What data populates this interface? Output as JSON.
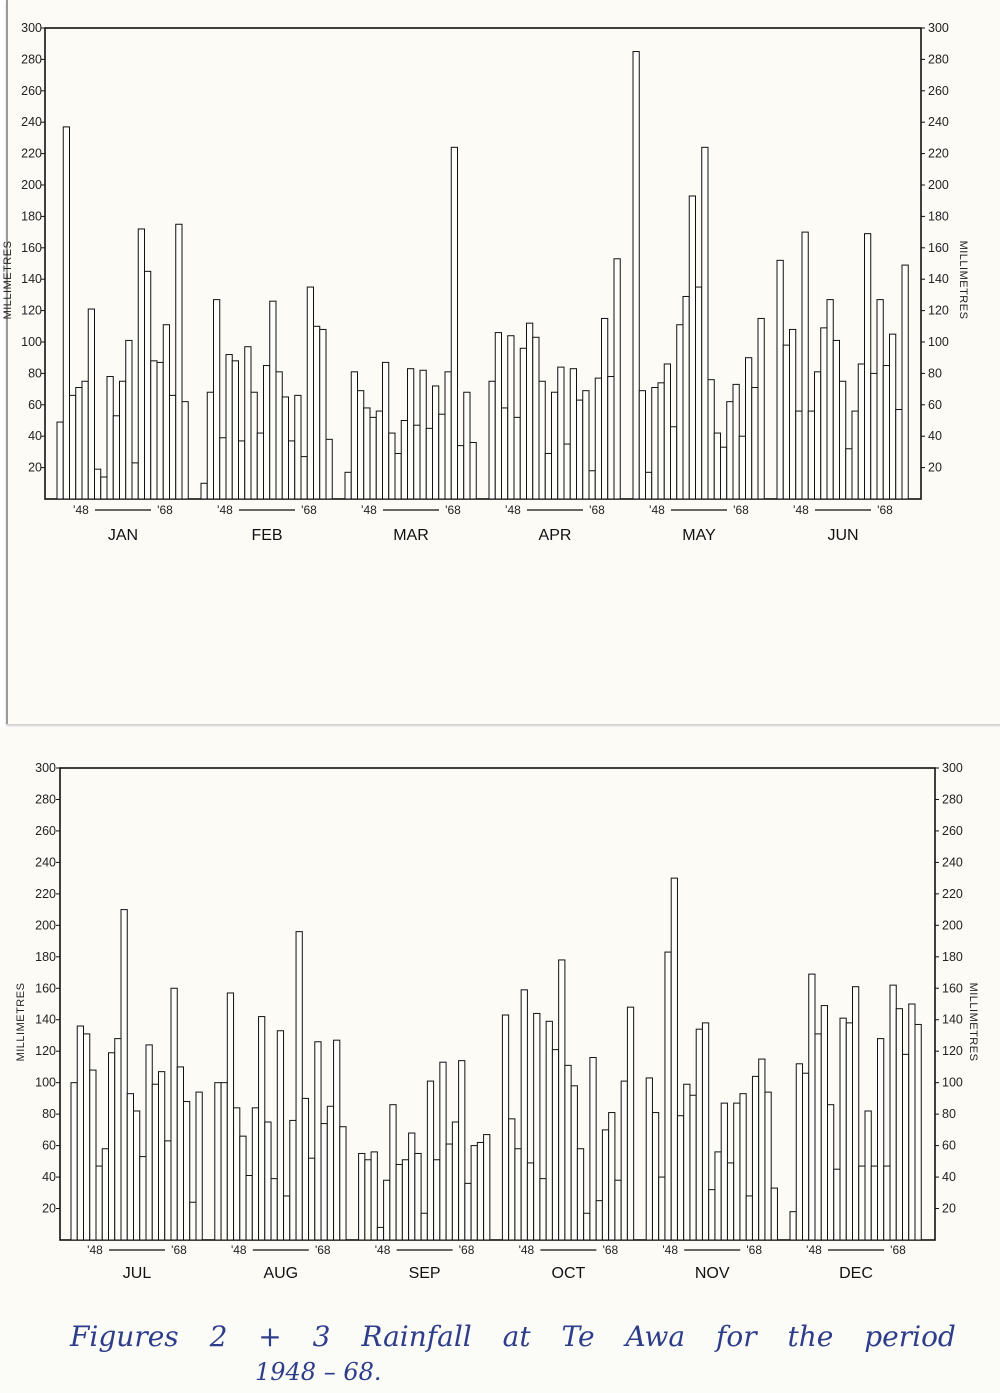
{
  "caption": {
    "line1": "Figures 2 + 3   Rainfall at Te Awa for the period",
    "line2": "1948 – 68."
  },
  "colors": {
    "paper": "#fcfbf6",
    "ink": "#111111",
    "caption_ink": "#2d3d8a"
  },
  "chart_data": [
    {
      "type": "bar",
      "ylabel": "MILLIMETRES",
      "ylabel_right": "MILLIMETRES",
      "ylim": [
        0,
        300
      ],
      "yticks": [
        20,
        40,
        60,
        80,
        100,
        120,
        140,
        160,
        180,
        200,
        220,
        240,
        260,
        280,
        300
      ],
      "year_labels": [
        "'48",
        "'68"
      ],
      "grid": false,
      "categories": [
        "JAN",
        "FEB",
        "MAR",
        "APR",
        "MAY",
        "JUN"
      ],
      "series_years": "1948–1968",
      "values": {
        "JAN": [
          49,
          237,
          66,
          71,
          75,
          121,
          19,
          14,
          78,
          53,
          75,
          101,
          23,
          172,
          145,
          88,
          87,
          111,
          66,
          175,
          62
        ],
        "FEB": [
          10,
          68,
          127,
          39,
          92,
          88,
          37,
          97,
          68,
          42,
          85,
          126,
          81,
          65,
          37,
          66,
          27,
          135,
          110,
          108,
          38
        ],
        "MAR": [
          17,
          81,
          69,
          58,
          52,
          56,
          87,
          42,
          29,
          50,
          83,
          47,
          82,
          45,
          72,
          54,
          81,
          224,
          34,
          68,
          36
        ],
        "APR": [
          75,
          106,
          58,
          104,
          52,
          96,
          112,
          103,
          75,
          29,
          68,
          84,
          35,
          83,
          63,
          69,
          18,
          77,
          115,
          78,
          153
        ],
        "MAY": [
          285,
          69,
          17,
          71,
          74,
          86,
          46,
          111,
          129,
          193,
          135,
          224,
          76,
          42,
          33,
          62,
          73,
          40,
          90,
          71,
          115
        ],
        "JUN": [
          152,
          98,
          108,
          56,
          170,
          56,
          81,
          109,
          127,
          101,
          75,
          32,
          56,
          86,
          169,
          80,
          127,
          85,
          105,
          57,
          149
        ]
      }
    },
    {
      "type": "bar",
      "ylabel": "MILLIMETRES",
      "ylabel_right": "MILLIMETRES",
      "ylim": [
        0,
        300
      ],
      "yticks": [
        20,
        40,
        60,
        80,
        100,
        120,
        140,
        160,
        180,
        200,
        220,
        240,
        260,
        280,
        300
      ],
      "year_labels": [
        "'48",
        "'68"
      ],
      "grid": false,
      "categories": [
        "JUL",
        "AUG",
        "SEP",
        "OCT",
        "NOV",
        "DEC"
      ],
      "series_years": "1948–1968",
      "values": {
        "JUL": [
          100,
          136,
          131,
          108,
          47,
          58,
          119,
          128,
          210,
          93,
          82,
          53,
          124,
          99,
          107,
          63,
          160,
          110,
          88,
          24,
          94
        ],
        "AUG": [
          100,
          100,
          157,
          84,
          66,
          41,
          84,
          142,
          75,
          39,
          133,
          28,
          76,
          196,
          90,
          52,
          126,
          74,
          85,
          127,
          72
        ],
        "SEP": [
          55,
          51,
          56,
          8,
          38,
          86,
          48,
          51,
          68,
          55,
          17,
          101,
          51,
          113,
          61,
          75,
          114,
          36,
          60,
          62,
          67
        ],
        "OCT": [
          143,
          77,
          58,
          159,
          49,
          144,
          39,
          139,
          121,
          178,
          111,
          98,
          58,
          17,
          116,
          25,
          70,
          81,
          38,
          101,
          148
        ],
        "NOV": [
          103,
          81,
          40,
          183,
          230,
          79,
          99,
          92,
          134,
          138,
          32,
          56,
          87,
          49,
          87,
          93,
          28,
          104,
          115,
          94,
          33
        ],
        "DEC": [
          18,
          112,
          106,
          169,
          131,
          149,
          86,
          45,
          141,
          138,
          161,
          47,
          82,
          47,
          128,
          47,
          162,
          147,
          118,
          150,
          137
        ]
      }
    }
  ]
}
